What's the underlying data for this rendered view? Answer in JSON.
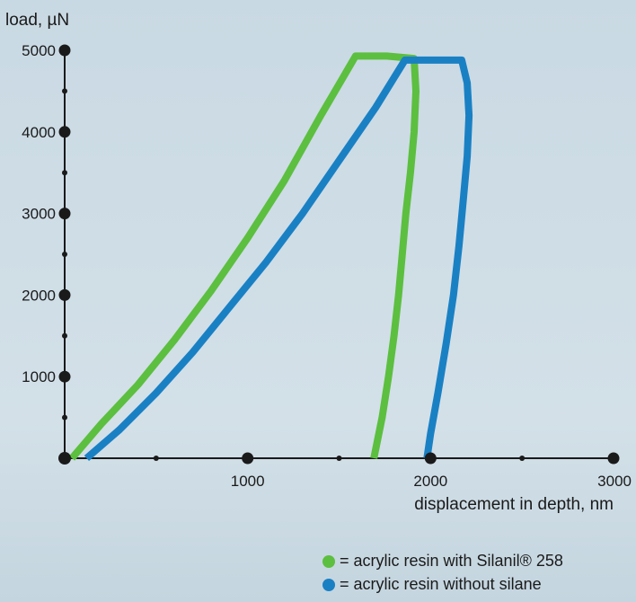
{
  "chart_data": {
    "type": "line",
    "title": "",
    "ylabel": "load, µN",
    "xlabel": "displacement in depth, nm",
    "xlim": [
      0,
      3000
    ],
    "ylim": [
      0,
      5000
    ],
    "x_major_ticks": [
      1000,
      2000,
      3000
    ],
    "x_minor_ticks": [
      500,
      1500,
      2500
    ],
    "y_major_ticks": [
      1000,
      2000,
      3000,
      4000,
      5000
    ],
    "y_minor_ticks": [
      500,
      1500,
      2500,
      3500,
      4500
    ],
    "grid": false,
    "legend_position": "bottom-right",
    "series": [
      {
        "name": "= acrylic resin with Silanil® 258",
        "color": "#5cbf3f",
        "points": [
          [
            40,
            0
          ],
          [
            200,
            420
          ],
          [
            400,
            900
          ],
          [
            600,
            1450
          ],
          [
            800,
            2050
          ],
          [
            1000,
            2700
          ],
          [
            1200,
            3400
          ],
          [
            1400,
            4200
          ],
          [
            1590,
            4930
          ],
          [
            1760,
            4930
          ],
          [
            1910,
            4900
          ],
          [
            1920,
            4500
          ],
          [
            1910,
            4000
          ],
          [
            1890,
            3500
          ],
          [
            1865,
            3000
          ],
          [
            1845,
            2500
          ],
          [
            1825,
            2000
          ],
          [
            1800,
            1500
          ],
          [
            1770,
            1000
          ],
          [
            1735,
            500
          ],
          [
            1690,
            0
          ]
        ]
      },
      {
        "name": "= acrylic resin without silane",
        "color": "#1a80c4",
        "points": [
          [
            120,
            0
          ],
          [
            300,
            350
          ],
          [
            500,
            800
          ],
          [
            700,
            1300
          ],
          [
            900,
            1850
          ],
          [
            1100,
            2400
          ],
          [
            1300,
            3000
          ],
          [
            1500,
            3650
          ],
          [
            1700,
            4300
          ],
          [
            1860,
            4880
          ],
          [
            2170,
            4880
          ],
          [
            2200,
            4600
          ],
          [
            2210,
            4200
          ],
          [
            2200,
            3700
          ],
          [
            2180,
            3200
          ],
          [
            2155,
            2600
          ],
          [
            2125,
            2000
          ],
          [
            2085,
            1400
          ],
          [
            2040,
            800
          ],
          [
            2000,
            300
          ],
          [
            1980,
            0
          ]
        ]
      }
    ]
  }
}
